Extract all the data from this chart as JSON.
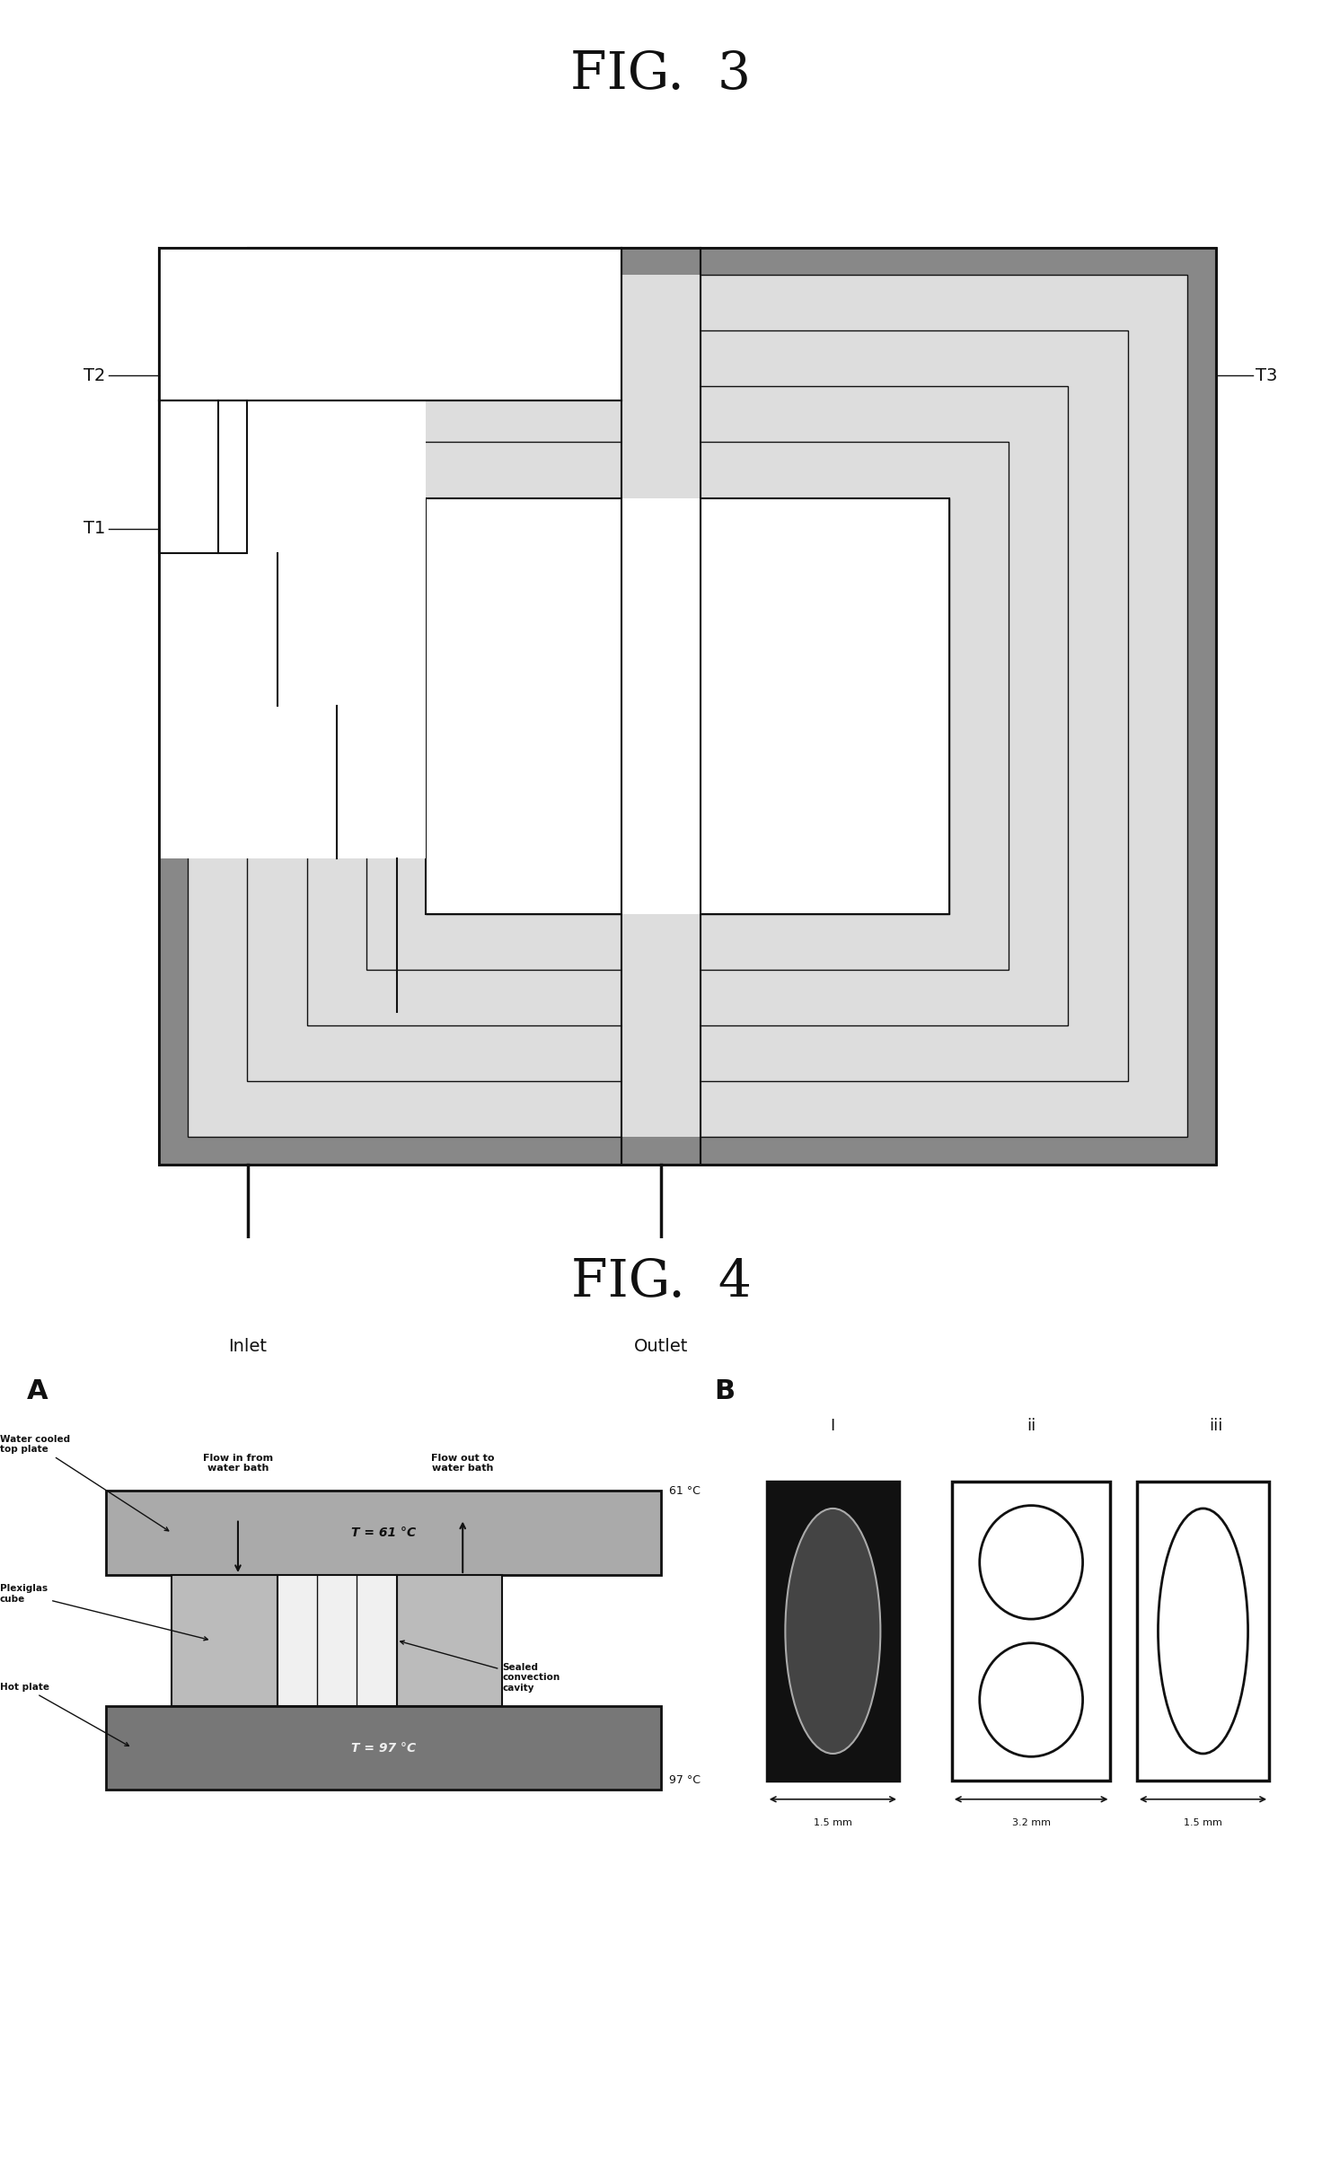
{
  "fig3_title": "FIG.  3",
  "fig4_title": "FIG.  4",
  "bg_color": "#ffffff",
  "label_T1": "T1",
  "label_T2": "T2",
  "label_T3": "T3",
  "label_inlet": "Inlet",
  "label_outlet": "Outlet",
  "panel_A": "A",
  "panel_B": "B",
  "temp_top": "T = 61 °C",
  "temp_bot": "T = 97 °C",
  "label_water_cooled": "Water cooled\ntop plate",
  "label_plexiglas": "Plexiglas\ncube",
  "label_hot_plate": "Hot plate",
  "label_sealed": "Sealed\nconvection\ncavity",
  "label_flow_in": "Flow in from\nwater bath",
  "label_flow_out": "Flow out to\nwater bath",
  "label_61C": "61 °C",
  "label_97C": "97 °C",
  "label_roman_i": "I",
  "label_roman_ii": "ii",
  "label_roman_iii": "iii",
  "label_dim1": "1.5 mm",
  "label_dim2": "3.2 mm",
  "label_dim3": "1.5 mm",
  "dark_color": "#111111",
  "mid_color": "#888888",
  "light_color": "#cccccc",
  "very_light": "#eeeeee",
  "gray_fill": "#aaaaaa",
  "dark_gray": "#555555",
  "texture_gray": "#999999"
}
